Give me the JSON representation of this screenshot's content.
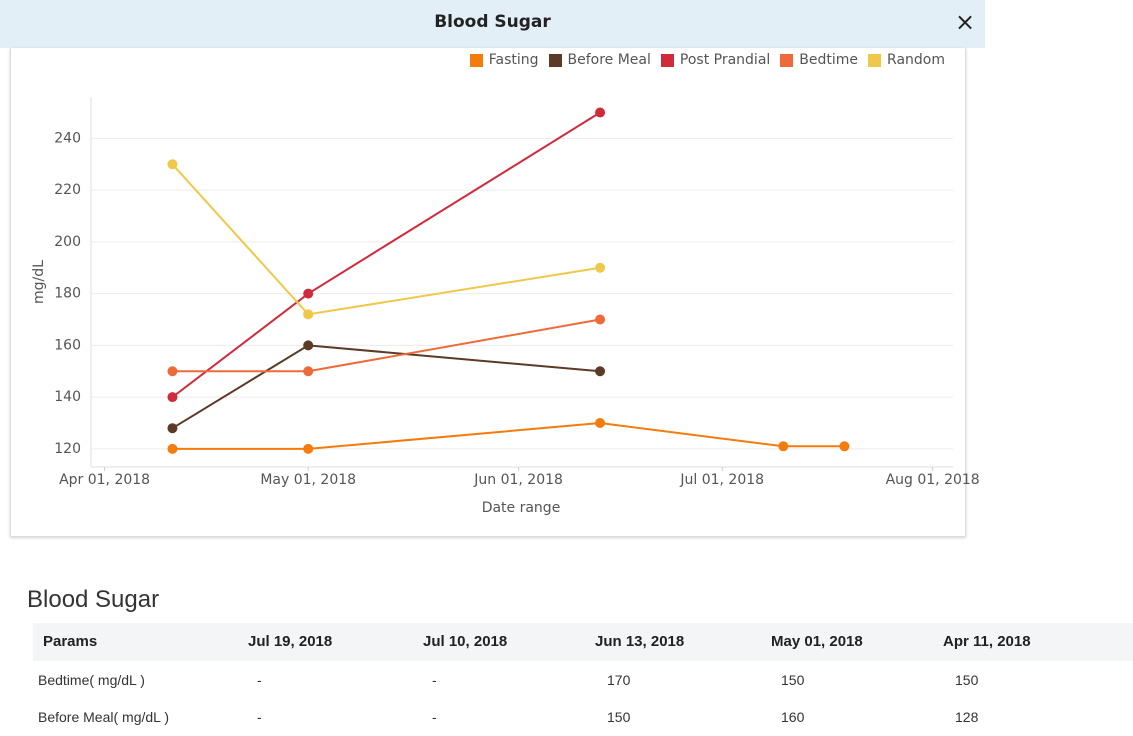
{
  "header": {
    "title": "Blood Sugar",
    "close": "×"
  },
  "chart_data": {
    "type": "line",
    "x": [
      "2018-04-11",
      "2018-05-01",
      "2018-06-13",
      "2018-07-10",
      "2018-07-19"
    ],
    "series": [
      {
        "name": "Fasting",
        "color": "#f47b0c",
        "values": [
          120,
          120,
          130,
          121,
          121
        ]
      },
      {
        "name": "Before Meal",
        "color": "#5b3a27",
        "values": [
          128,
          160,
          150,
          null,
          null
        ]
      },
      {
        "name": "Post Prandial",
        "color": "#d12a3b",
        "values": [
          140,
          180,
          250,
          null,
          null
        ]
      },
      {
        "name": "Bedtime",
        "color": "#ef6a3a",
        "values": [
          150,
          150,
          170,
          null,
          null
        ]
      },
      {
        "name": "Random",
        "color": "#efc84a",
        "values": [
          230,
          172,
          190,
          null,
          null
        ]
      }
    ],
    "xlim": [
      "2018-03-30",
      "2018-08-04"
    ],
    "xticks": [
      {
        "value": "2018-04-01",
        "label": "Apr 01, 2018"
      },
      {
        "value": "2018-05-01",
        "label": "May 01, 2018"
      },
      {
        "value": "2018-06-01",
        "label": "Jun 01, 2018"
      },
      {
        "value": "2018-07-01",
        "label": "Jul 01, 2018"
      },
      {
        "value": "2018-08-01",
        "label": "Aug 01, 2018"
      }
    ],
    "ylim": [
      113,
      256
    ],
    "yticks": [
      120,
      140,
      160,
      180,
      200,
      220,
      240
    ],
    "y_label": "mg/dL",
    "x_label": "Date range",
    "grid": true,
    "legend": "top-right"
  },
  "section": {
    "title": "Blood Sugar"
  },
  "table": {
    "header": [
      "Params",
      "Jul 19, 2018",
      "Jul 10, 2018",
      "Jun 13, 2018",
      "May 01, 2018",
      "Apr 11, 2018"
    ],
    "rows": [
      [
        "Bedtime( mg/dL )",
        "-",
        "-",
        "170",
        "150",
        "150"
      ],
      [
        "Before Meal( mg/dL )",
        "-",
        "-",
        "150",
        "160",
        "128"
      ]
    ]
  }
}
